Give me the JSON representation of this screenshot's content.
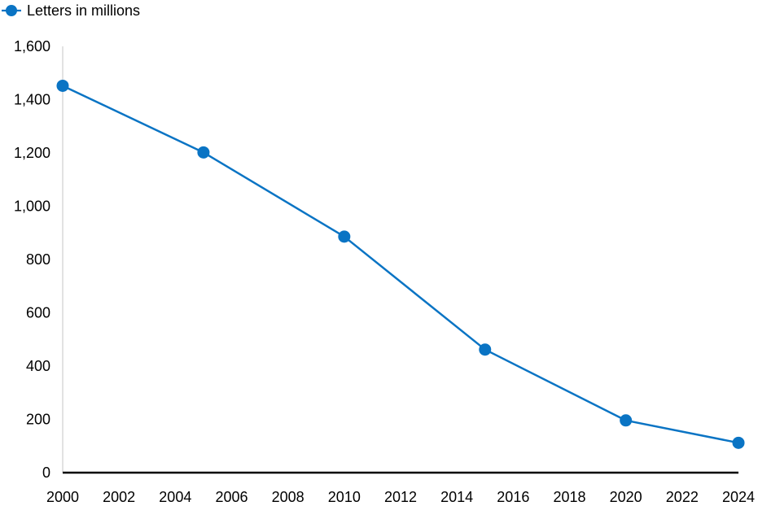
{
  "chart_data": {
    "type": "line",
    "x": [
      2000,
      2005,
      2010,
      2015,
      2020,
      2024
    ],
    "series": [
      {
        "name": "Letters in millions",
        "values": [
          1452,
          1202,
          886,
          462,
          196,
          112
        ],
        "color": "#0a74c4"
      }
    ],
    "xlim": [
      2000,
      2024
    ],
    "ylim": [
      0,
      1600
    ],
    "x_ticks": [
      2000,
      2002,
      2004,
      2006,
      2008,
      2010,
      2012,
      2014,
      2016,
      2018,
      2020,
      2022,
      2024
    ],
    "y_ticks": [
      {
        "value": 0,
        "label": "0"
      },
      {
        "value": 200,
        "label": "200"
      },
      {
        "value": 400,
        "label": "400"
      },
      {
        "value": 600,
        "label": "600"
      },
      {
        "value": 800,
        "label": "800"
      },
      {
        "value": 1000,
        "label": "1,000"
      },
      {
        "value": 1200,
        "label": "1,200"
      },
      {
        "value": 1400,
        "label": "1,400"
      },
      {
        "value": 1600,
        "label": "1,600"
      }
    ],
    "grid": false,
    "legend_position": "top-left",
    "title": "",
    "xlabel": "",
    "ylabel": ""
  }
}
